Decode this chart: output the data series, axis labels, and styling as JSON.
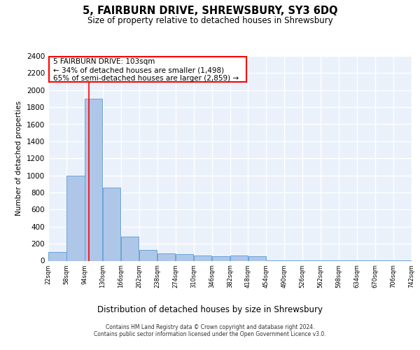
{
  "title": "5, FAIRBURN DRIVE, SHREWSBURY, SY3 6DQ",
  "subtitle": "Size of property relative to detached houses in Shrewsbury",
  "xlabel": "Distribution of detached houses by size in Shrewsbury",
  "ylabel": "Number of detached properties",
  "bar_color": "#aec6e8",
  "bar_edge_color": "#5b9bd5",
  "background_color": "#eaf1fb",
  "grid_color": "#ffffff",
  "annotation_line1": "5 FAIRBURN DRIVE: 103sqm",
  "annotation_line2": "← 34% of detached houses are smaller (1,498)",
  "annotation_line3": "65% of semi-detached houses are larger (2,859) →",
  "vline_x": 103,
  "vline_color": "red",
  "footer_text": "Contains HM Land Registry data © Crown copyright and database right 2024.\nContains public sector information licensed under the Open Government Licence v3.0.",
  "bin_edges": [
    22,
    58,
    94,
    130,
    166,
    202,
    238,
    274,
    310,
    346,
    382,
    418,
    454,
    490,
    526,
    562,
    598,
    634,
    670,
    706,
    742
  ],
  "bar_heights": [
    100,
    1000,
    1900,
    860,
    280,
    130,
    90,
    80,
    60,
    50,
    60,
    50,
    5,
    5,
    5,
    5,
    5,
    5,
    5,
    5
  ],
  "xlim": [
    22,
    742
  ],
  "ylim": [
    0,
    2400
  ],
  "yticks": [
    0,
    200,
    400,
    600,
    800,
    1000,
    1200,
    1400,
    1600,
    1800,
    2000,
    2200,
    2400
  ],
  "tick_labels": [
    "22sqm",
    "58sqm",
    "94sqm",
    "130sqm",
    "166sqm",
    "202sqm",
    "238sqm",
    "274sqm",
    "310sqm",
    "346sqm",
    "382sqm",
    "418sqm",
    "454sqm",
    "490sqm",
    "526sqm",
    "562sqm",
    "598sqm",
    "634sqm",
    "670sqm",
    "706sqm",
    "742sqm"
  ]
}
